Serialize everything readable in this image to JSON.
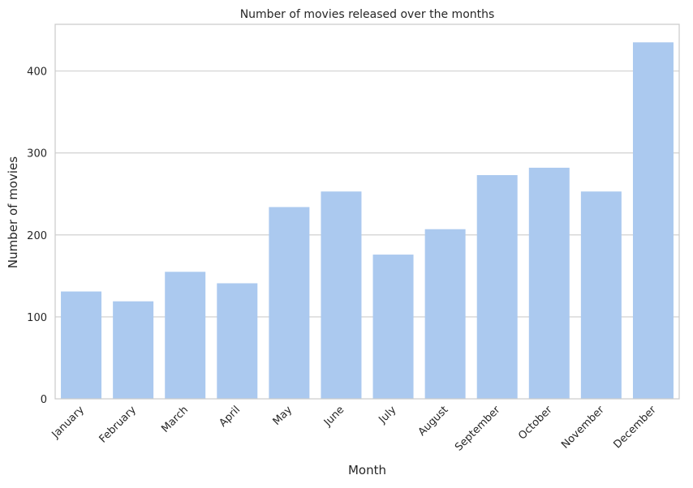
{
  "chart_data": {
    "type": "bar",
    "title": "Number of movies released over the months",
    "xlabel": "Month",
    "ylabel": "Number of movies",
    "categories": [
      "January",
      "February",
      "March",
      "April",
      "May",
      "June",
      "July",
      "August",
      "September",
      "October",
      "November",
      "December"
    ],
    "values": [
      131,
      119,
      155,
      141,
      234,
      253,
      176,
      207,
      273,
      282,
      253,
      435
    ],
    "ylim": [
      0,
      457
    ],
    "yticks": [
      0,
      100,
      200,
      300,
      400
    ],
    "grid": true,
    "bar_color": "#abc9ef",
    "grid_color": "#cccccc",
    "axis_color": "#cccccc"
  }
}
